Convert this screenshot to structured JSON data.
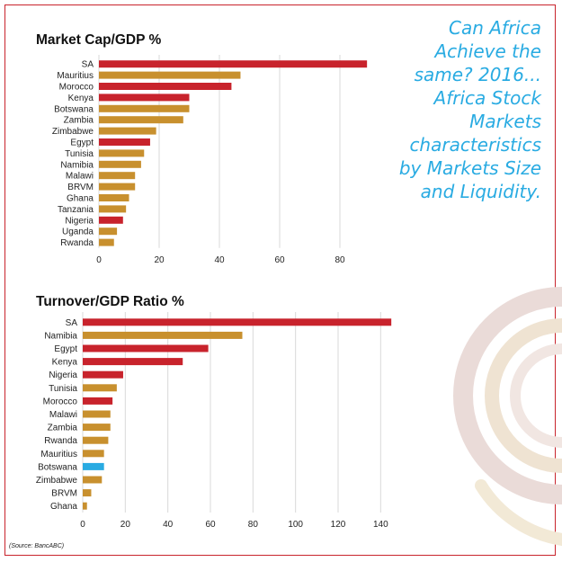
{
  "headline": "Can Africa\nAchieve the\nsame? 2016...\nAfrica Stock\nMarkets\ncharacteristics\nby Markets Size\nand Liquidity.",
  "source": "(Source: BancABC)",
  "colors": {
    "red": "#c8232c",
    "gold": "#c8902e",
    "blue": "#29abe2",
    "frame": "#c8232c",
    "grid": "#d9d9d9"
  },
  "chart_data": [
    {
      "type": "bar",
      "orientation": "horizontal",
      "title": "Market Cap/GDP %",
      "categories": [
        "SA",
        "Mauritius",
        "Morocco",
        "Kenya",
        "Botswana",
        "Zambia",
        "Zimbabwe",
        "Egypt",
        "Tunisia",
        "Namibia",
        "Malawi",
        "BRVM",
        "Ghana",
        "Tanzania",
        "Nigeria",
        "Uganda",
        "Rwanda"
      ],
      "values": [
        89,
        47,
        44,
        30,
        30,
        28,
        19,
        17,
        15,
        14,
        12,
        12,
        10,
        9,
        8,
        6,
        5
      ],
      "colors": [
        "red",
        "gold",
        "red",
        "red",
        "gold",
        "gold",
        "gold",
        "red",
        "gold",
        "gold",
        "gold",
        "gold",
        "gold",
        "gold",
        "red",
        "gold",
        "gold"
      ],
      "xticks": [
        0,
        20,
        40,
        60,
        80
      ],
      "xlim": [
        0,
        100
      ],
      "grid": true
    },
    {
      "type": "bar",
      "orientation": "horizontal",
      "title": "Turnover/GDP Ratio %",
      "categories": [
        "SA",
        "Namibia",
        "Egypt",
        "Kenya",
        "Nigeria",
        "Tunisia",
        "Morocco",
        "Malawi",
        "Zambia",
        "Rwanda",
        "Mauritius",
        "Botswana",
        "Zimbabwe",
        "BRVM",
        "Ghana"
      ],
      "values": [
        145,
        75,
        59,
        47,
        19,
        16,
        14,
        13,
        13,
        12,
        10,
        10,
        9,
        4,
        2
      ],
      "colors": [
        "red",
        "gold",
        "red",
        "red",
        "red",
        "gold",
        "red",
        "gold",
        "gold",
        "gold",
        "gold",
        "blue",
        "gold",
        "gold",
        "gold"
      ],
      "xticks": [
        0,
        20,
        40,
        60,
        80,
        100,
        120,
        140
      ],
      "xlim": [
        0,
        150
      ],
      "grid": true
    }
  ]
}
